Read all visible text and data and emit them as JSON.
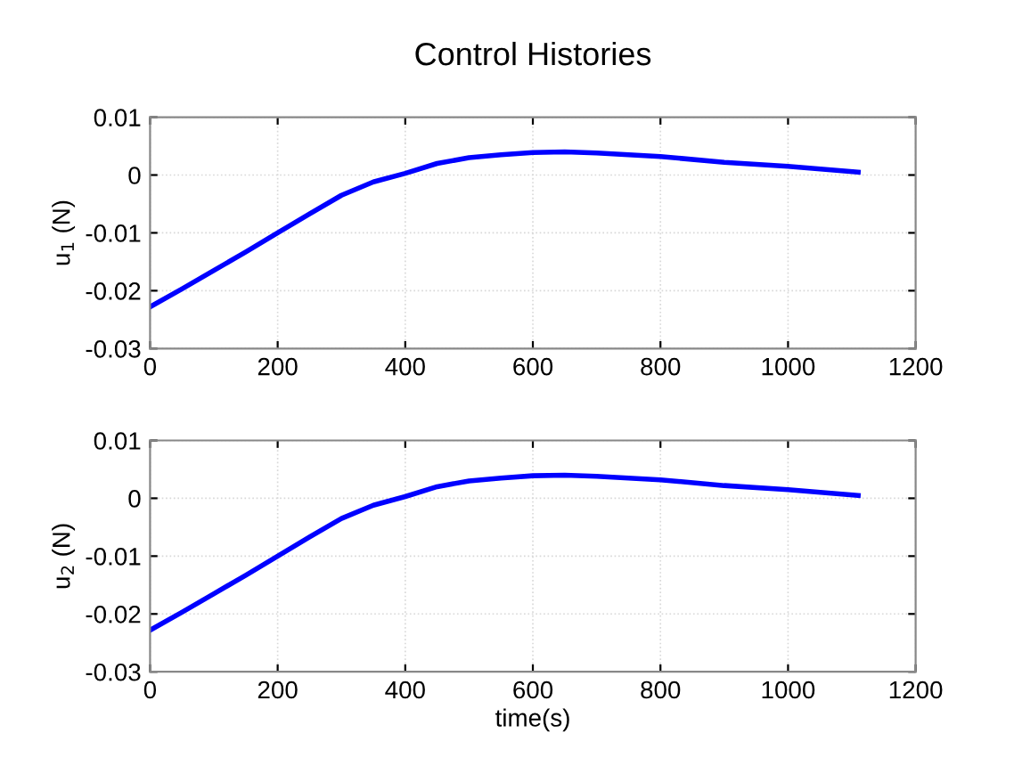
{
  "chart_data": [
    {
      "type": "line",
      "title": "Control Histories",
      "ylabel": "u$_{1}$ (N)",
      "x": [
        0,
        50,
        100,
        150,
        200,
        250,
        300,
        350,
        400,
        450,
        500,
        550,
        600,
        650,
        700,
        800,
        900,
        1000,
        1110
      ],
      "series": [
        {
          "color": "#0000ff",
          "values": [
            -0.0228,
            -0.0197,
            -0.0165,
            -0.0133,
            -0.01,
            -0.0067,
            -0.0035,
            -0.0012,
            0.0003,
            0.002,
            0.003,
            0.0035,
            0.0039,
            0.004,
            0.0038,
            0.0032,
            0.0022,
            0.0015,
            0.0005
          ]
        }
      ],
      "xlim": [
        0,
        1200
      ],
      "xticks": [
        0,
        200,
        400,
        600,
        800,
        1000,
        1200
      ],
      "ylim": [
        -0.03,
        0.01
      ],
      "yticks": [
        -0.03,
        -0.02,
        -0.01,
        0,
        0.01
      ],
      "grid": true
    },
    {
      "type": "line",
      "xlabel": "time(s)",
      "ylabel": "u$_{2}$ (N)",
      "x": [
        0,
        50,
        100,
        150,
        200,
        250,
        300,
        350,
        400,
        450,
        500,
        550,
        600,
        650,
        700,
        800,
        900,
        1000,
        1110
      ],
      "series": [
        {
          "color": "#0000ff",
          "values": [
            -0.0228,
            -0.0197,
            -0.0165,
            -0.0133,
            -0.01,
            -0.0067,
            -0.0035,
            -0.0012,
            0.0003,
            0.002,
            0.003,
            0.0035,
            0.0039,
            0.004,
            0.0038,
            0.0032,
            0.0022,
            0.0015,
            0.0005
          ]
        }
      ],
      "xlim": [
        0,
        1200
      ],
      "xticks": [
        0,
        200,
        400,
        600,
        800,
        1000,
        1200
      ],
      "ylim": [
        -0.03,
        0.01
      ],
      "yticks": [
        -0.03,
        -0.02,
        -0.01,
        0,
        0.01
      ],
      "grid": true
    }
  ]
}
